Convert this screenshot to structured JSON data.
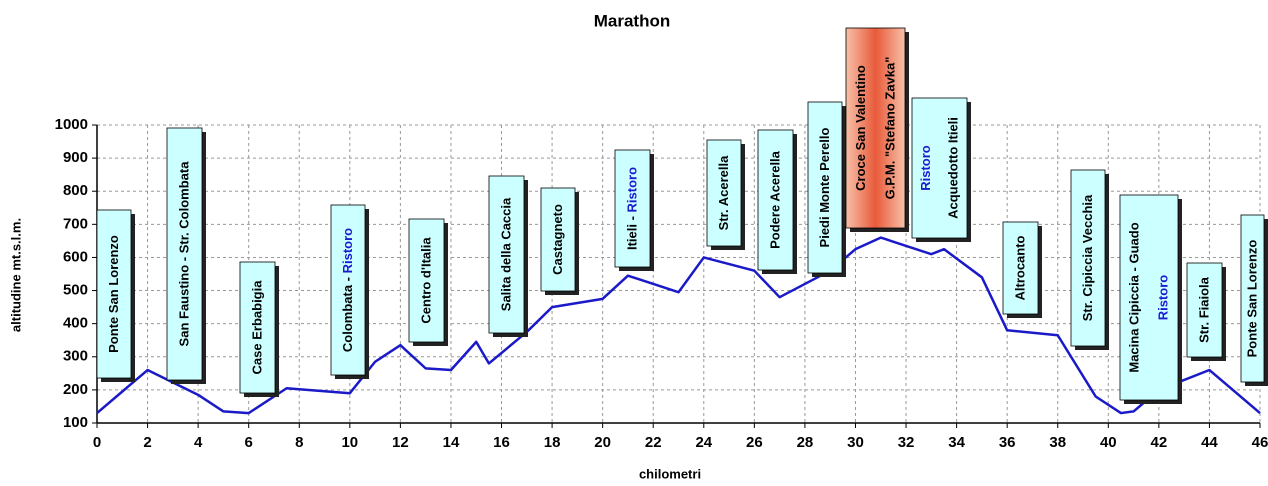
{
  "chart_data": {
    "type": "line",
    "title": "Marathon",
    "x_label": "chilometri",
    "y_label": "altitudine mt.s.l.m.",
    "xlim": [
      0,
      46
    ],
    "ylim": [
      100,
      1000
    ],
    "xticks": [
      0,
      2,
      4,
      6,
      8,
      10,
      12,
      14,
      16,
      18,
      20,
      22,
      24,
      26,
      28,
      30,
      32,
      34,
      36,
      38,
      40,
      42,
      44,
      46
    ],
    "yticks": [
      100,
      200,
      300,
      400,
      500,
      600,
      700,
      800,
      900,
      1000
    ],
    "grid": true,
    "series": [
      {
        "name": "altitudine",
        "color": "#1a1ac8",
        "x": [
          0,
          2,
          4,
          5,
          6,
          7.5,
          10,
          11,
          12,
          13,
          14,
          15,
          15.5,
          17,
          18,
          20,
          21,
          23,
          24,
          26,
          27,
          29,
          30,
          31,
          33,
          33.5,
          35,
          36,
          38,
          39.5,
          40.5,
          41,
          42,
          44,
          46
        ],
        "values": [
          130,
          260,
          185,
          135,
          130,
          205,
          190,
          285,
          335,
          265,
          260,
          345,
          280,
          375,
          450,
          475,
          545,
          495,
          600,
          560,
          480,
          560,
          625,
          660,
          610,
          625,
          540,
          380,
          365,
          180,
          130,
          135,
          200,
          260,
          130
        ]
      }
    ],
    "annotations": [
      {
        "lines": [
          [
            {
              "text": "Ponte San Lorenzo"
            }
          ]
        ]
      },
      {
        "lines": [
          [
            {
              "text": "San Faustino - Str. Colombata"
            }
          ]
        ]
      },
      {
        "lines": [
          [
            {
              "text": "Case Erbabigia"
            }
          ]
        ]
      },
      {
        "lines": [
          [
            {
              "text": "Colombata - "
            },
            {
              "text": "Ristoro",
              "color": "#1a1ad0"
            }
          ]
        ]
      },
      {
        "lines": [
          [
            {
              "text": "Centro d'Italia"
            }
          ]
        ]
      },
      {
        "lines": [
          [
            {
              "text": "Salita della Caccia"
            }
          ]
        ]
      },
      {
        "lines": [
          [
            {
              "text": "Castagneto"
            }
          ]
        ]
      },
      {
        "lines": [
          [
            {
              "text": "Itieli - "
            },
            {
              "text": "Ristoro",
              "color": "#1a1ad0"
            }
          ]
        ]
      },
      {
        "lines": [
          [
            {
              "text": "Str. Acerella"
            }
          ]
        ]
      },
      {
        "lines": [
          [
            {
              "text": "Podere Acerella"
            }
          ]
        ]
      },
      {
        "lines": [
          [
            {
              "text": "Piedi Monte Perello"
            }
          ]
        ]
      },
      {
        "lines": [
          [
            {
              "text": "Croce San Valentino"
            }
          ],
          [
            {
              "text": "G.P.M. \"Stefano Zavka\""
            }
          ]
        ],
        "highlight": true
      },
      {
        "lines": [
          [
            {
              "text": "Ristoro",
              "color": "#1a1ad0"
            }
          ],
          [
            {
              "text": "Acquedotto Itieli"
            }
          ]
        ]
      },
      {
        "lines": [
          [
            {
              "text": "Altrocanto"
            }
          ]
        ]
      },
      {
        "lines": [
          [
            {
              "text": "Str. Cipiccia Vecchia"
            }
          ]
        ]
      },
      {
        "lines": [
          [
            {
              "text": "Macina Cipiccia - Guado"
            }
          ],
          [
            {
              "text": "Ristoro",
              "color": "#1a1ad0"
            }
          ]
        ]
      },
      {
        "lines": [
          [
            {
              "text": "Str. Fiaiola"
            }
          ]
        ]
      },
      {
        "lines": [
          [
            {
              "text": "Ponte San Lorenzo"
            }
          ]
        ]
      }
    ]
  }
}
